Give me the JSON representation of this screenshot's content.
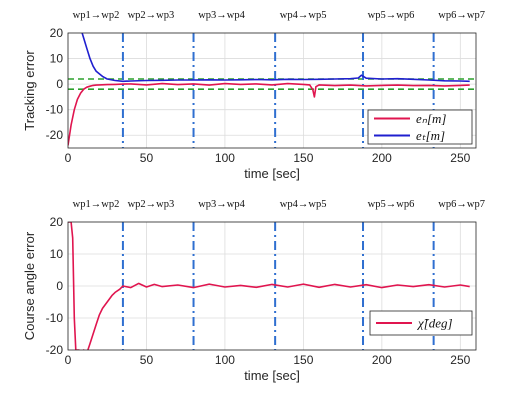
{
  "chart_data": [
    {
      "type": "line",
      "title": "",
      "xlabel": "time [sec]",
      "ylabel": "Tracking error",
      "xlim": [
        0,
        260
      ],
      "ylim": [
        -25,
        20
      ],
      "xticks": [
        0,
        50,
        100,
        150,
        200,
        250
      ],
      "yticks": [
        -20,
        -10,
        0,
        10,
        20
      ],
      "grid": true,
      "legend_position": "bottom-right",
      "waypoint_times": [
        35,
        80,
        132,
        188,
        233
      ],
      "waypoint_labels": [
        "wp1→wp2",
        "wp2→wp3",
        "wp3→wp4",
        "wp4→wp5",
        "wp5→wp6",
        "wp6→wp7"
      ],
      "threshold_lines": [
        2,
        -2
      ],
      "series": [
        {
          "name": "e_n[m]",
          "legend_label": "eₙ[m]",
          "color": "#e0154f",
          "x": [
            0,
            2,
            4,
            6,
            8,
            10,
            12,
            14,
            16,
            18,
            20,
            25,
            30,
            35,
            40,
            50,
            60,
            70,
            80,
            90,
            100,
            110,
            120,
            130,
            140,
            150,
            154,
            156,
            157,
            158,
            160,
            170,
            180,
            190,
            200,
            210,
            220,
            230,
            240,
            250,
            256
          ],
          "y": [
            -24,
            -16,
            -10,
            -6,
            -3.5,
            -2,
            -1.2,
            -0.8,
            -0.5,
            -0.4,
            -0.3,
            -0.2,
            -0.1,
            0,
            0.1,
            -0.3,
            0.2,
            -0.2,
            0.1,
            -0.4,
            0.2,
            -0.1,
            0.1,
            -0.3,
            0.2,
            -0.1,
            -0.3,
            -2.2,
            -5,
            -1,
            -0.3,
            -0.6,
            -0.4,
            -0.7,
            -0.5,
            -0.4,
            -0.6,
            -0.5,
            -0.7,
            -0.5,
            -0.4
          ]
        },
        {
          "name": "e_t[m]",
          "legend_label": "eₜ[m]",
          "color": "#1f1fcf",
          "x": [
            8,
            10,
            12,
            14,
            16,
            18,
            20,
            22,
            25,
            30,
            35,
            40,
            50,
            60,
            70,
            80,
            90,
            100,
            110,
            120,
            130,
            140,
            150,
            160,
            170,
            180,
            185,
            187,
            190,
            200,
            210,
            220,
            230,
            240,
            250,
            256
          ],
          "y": [
            22,
            18,
            14,
            10,
            7,
            5,
            4,
            3,
            2,
            1.4,
            1.1,
            1.2,
            1.4,
            1.5,
            1.6,
            1.6,
            1.7,
            1.6,
            1.7,
            1.8,
            1.7,
            1.9,
            1.8,
            1.9,
            2,
            2.1,
            2.4,
            3.5,
            2.3,
            2,
            2.1,
            1.9,
            1.6,
            1.3,
            1.2,
            1.1
          ]
        }
      ]
    },
    {
      "type": "line",
      "title": "",
      "xlabel": "time [sec]",
      "ylabel": "Course angle error",
      "xlim": [
        0,
        260
      ],
      "ylim": [
        -20,
        20
      ],
      "xticks": [
        0,
        50,
        100,
        150,
        200,
        250
      ],
      "yticks": [
        -20,
        -10,
        0,
        10,
        20
      ],
      "grid": true,
      "legend_position": "bottom-right",
      "waypoint_times": [
        35,
        80,
        132,
        188,
        233
      ],
      "waypoint_labels": [
        "wp1→wp2",
        "wp2→wp3",
        "wp3→wp4",
        "wp4→wp5",
        "wp5→wp6",
        "wp6→wp7"
      ],
      "series": [
        {
          "name": "χ̃[deg]",
          "legend_label": "χ̃[deg]",
          "color": "#e0154f",
          "x": [
            0,
            2,
            3,
            4,
            5,
            6,
            7,
            8,
            10,
            12,
            14,
            16,
            18,
            20,
            22,
            25,
            28,
            30,
            33,
            35,
            40,
            45,
            50,
            55,
            60,
            70,
            80,
            90,
            100,
            110,
            120,
            130,
            140,
            150,
            160,
            170,
            180,
            190,
            200,
            210,
            220,
            230,
            240,
            250,
            256
          ],
          "y": [
            20,
            20,
            15,
            -10,
            -20,
            -20,
            -20,
            -21,
            -20,
            -21,
            -18,
            -15,
            -12,
            -9,
            -7,
            -5,
            -3,
            -2,
            -1,
            0,
            -0.5,
            0.8,
            -0.3,
            0.5,
            -0.2,
            0.3,
            -0.5,
            0.6,
            -0.3,
            0.2,
            -0.4,
            0.5,
            -0.3,
            0.6,
            -0.4,
            0.5,
            -0.3,
            0.4,
            -0.5,
            0.3,
            -0.2,
            0.4,
            -0.3,
            0.3,
            -0.2
          ]
        }
      ]
    }
  ]
}
